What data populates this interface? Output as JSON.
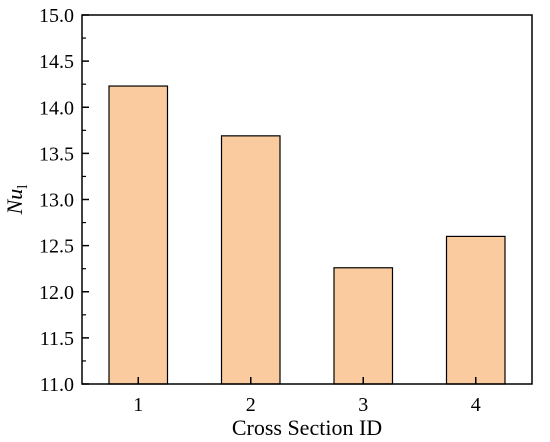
{
  "chart_data": {
    "type": "bar",
    "categories": [
      "1",
      "2",
      "3",
      "4"
    ],
    "values": [
      14.23,
      13.69,
      12.26,
      12.6
    ],
    "title": "",
    "xlabel": "Cross Section ID",
    "ylabel": {
      "main": "Nu",
      "subscript": "l"
    },
    "ylim": [
      11.0,
      15.0
    ],
    "yticks": [
      "11.0",
      "11.5",
      "12.0",
      "12.5",
      "13.0",
      "13.5",
      "14.0",
      "14.5",
      "15.0"
    ],
    "grid": false,
    "legend": "none",
    "bar_color": "#FACB9E",
    "bar_edge_color": "#000000"
  }
}
